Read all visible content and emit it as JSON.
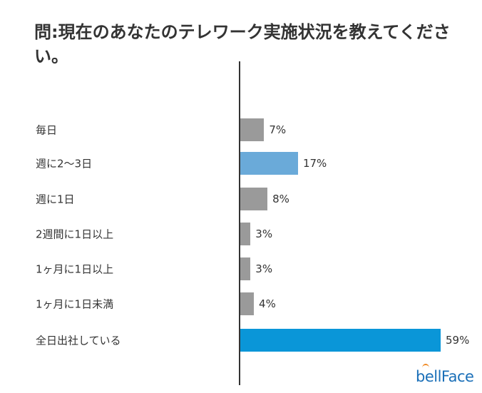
{
  "chart_data": {
    "type": "bar",
    "orientation": "horizontal",
    "title": "問:現在のあなたのテレワーク実施状況を教えてください。",
    "categories": [
      "毎日",
      "週に2〜3日",
      "週に1日",
      "2週間に1日以上",
      "1ヶ月に1日以上",
      "1ヶ月に1日未満",
      "全日出社している"
    ],
    "values": [
      7,
      17,
      8,
      3,
      3,
      4,
      59
    ],
    "labels": [
      "7%",
      "17%",
      "8%",
      "3%",
      "3%",
      "4%",
      "59%"
    ],
    "colors": [
      "#9a9a9a",
      "#6aaad9",
      "#9a9a9a",
      "#9a9a9a",
      "#9a9a9a",
      "#9a9a9a",
      "#0a96d8"
    ],
    "xlim": [
      0,
      60
    ],
    "grid": false
  },
  "logo": "bellFace"
}
